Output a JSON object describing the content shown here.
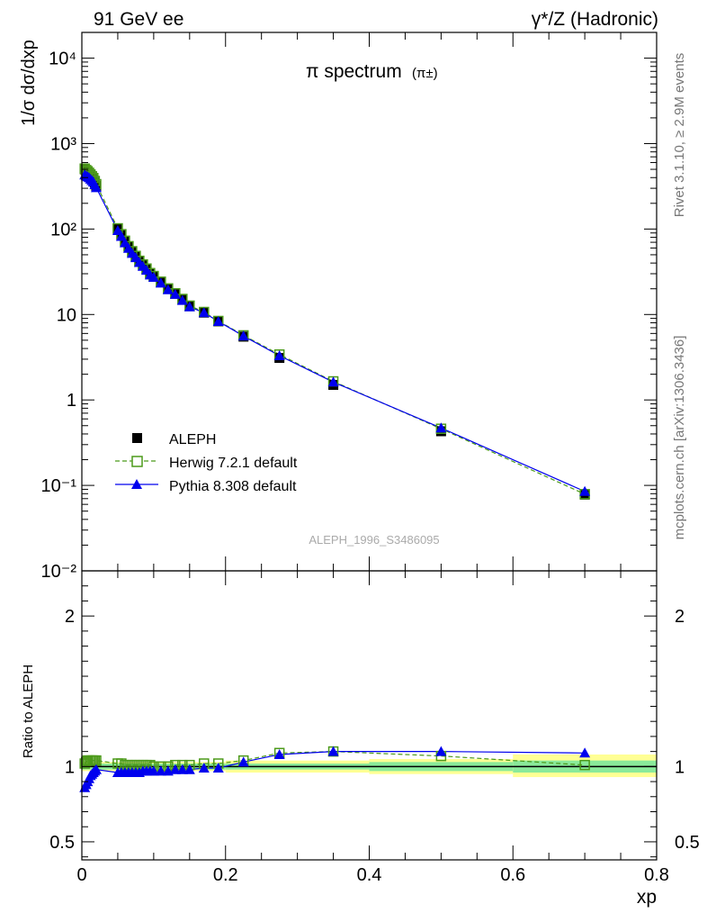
{
  "header": {
    "left": "91 GeV ee",
    "right": "γ*/Z (Hadronic)"
  },
  "title": {
    "main": "π spectrum",
    "sub": "(π±)"
  },
  "side_labels": {
    "top": "Rivet 3.1.10, ≥ 2.9M events",
    "bottom": "mcplots.cern.ch [arXiv:1306.3436]"
  },
  "reference": "ALEPH_1996_S3486095",
  "legend": {
    "items": [
      {
        "label": "ALEPH",
        "color": "#000000",
        "marker": "square-filled"
      },
      {
        "label": "Herwig 7.2.1 default",
        "color": "#4c9a1a",
        "marker": "square-open"
      },
      {
        "label": "Pythia 8.308 default",
        "color": "#0000ee",
        "marker": "triangle-filled"
      }
    ]
  },
  "chart_data": {
    "type": "line",
    "main": {
      "ylabel": "1/σ dσ/dxp",
      "yscale": "log",
      "ylim": [
        0.01,
        20000
      ],
      "ytick_labels": [
        "10⁻²",
        "10⁻¹",
        "1",
        "10",
        "10²",
        "10³",
        "10⁴"
      ],
      "x": [
        0.004,
        0.006,
        0.008,
        0.01,
        0.012,
        0.014,
        0.016,
        0.018,
        0.02,
        0.05,
        0.055,
        0.06,
        0.065,
        0.07,
        0.075,
        0.08,
        0.085,
        0.09,
        0.095,
        0.1,
        0.11,
        0.12,
        0.13,
        0.14,
        0.15,
        0.17,
        0.19,
        0.225,
        0.275,
        0.35,
        0.5,
        0.7
      ],
      "series": [
        {
          "name": "ALEPH",
          "values": [
            500,
            480,
            460,
            440,
            420,
            400,
            380,
            350,
            320,
            100,
            85,
            72,
            62,
            54,
            48,
            42,
            38,
            34,
            30,
            28,
            24,
            20,
            17.5,
            15,
            12.5,
            10.5,
            8.3,
            5.5,
            3.1,
            1.5,
            0.43,
            0.078
          ]
        },
        {
          "name": "Herwig 7.2.1 default",
          "values": [
            510,
            490,
            475,
            455,
            435,
            415,
            395,
            365,
            335,
            102,
            87,
            73,
            63,
            55,
            48.5,
            42.5,
            38.5,
            34.5,
            30.5,
            28.2,
            24.2,
            20.2,
            17.7,
            15.2,
            12.7,
            10.7,
            8.4,
            5.7,
            3.4,
            1.65,
            0.46,
            0.079
          ]
        },
        {
          "name": "Pythia 8.308 default",
          "values": [
            430,
            420,
            410,
            400,
            385,
            370,
            355,
            330,
            305,
            96,
            82,
            69,
            59.5,
            52,
            46.3,
            40.6,
            36.7,
            33,
            29,
            27.2,
            23.3,
            19.5,
            17.2,
            14.6,
            12.3,
            10.5,
            8.3,
            5.6,
            3.3,
            1.62,
            0.47,
            0.085
          ]
        }
      ]
    },
    "ratio": {
      "ylabel": "Ratio to ALEPH",
      "ylim": [
        0.38,
        2.3
      ],
      "ytick_labels": [
        "0.5",
        "1",
        "2"
      ],
      "xlabel": "xp",
      "xlim": [
        0,
        0.8
      ],
      "xtick_labels": [
        "0",
        "0.2",
        "0.4",
        "0.6",
        "0.8"
      ],
      "x": [
        0.004,
        0.006,
        0.008,
        0.01,
        0.012,
        0.014,
        0.016,
        0.018,
        0.02,
        0.05,
        0.055,
        0.06,
        0.065,
        0.07,
        0.075,
        0.08,
        0.085,
        0.09,
        0.095,
        0.1,
        0.11,
        0.12,
        0.13,
        0.14,
        0.15,
        0.17,
        0.19,
        0.225,
        0.275,
        0.35,
        0.5,
        0.7
      ],
      "series": [
        {
          "name": "Herwig 7.2.1 default",
          "values": [
            1.02,
            1.03,
            1.04,
            1.04,
            1.04,
            1.04,
            1.04,
            1.04,
            1.04,
            1.02,
            1.02,
            1.01,
            1.01,
            1.01,
            1.01,
            1.01,
            1.01,
            1.01,
            1.01,
            1.0,
            1.0,
            1.0,
            1.01,
            1.01,
            1.01,
            1.02,
            1.02,
            1.04,
            1.09,
            1.1,
            1.07,
            1.01
          ]
        },
        {
          "name": "Pythia 8.308 default",
          "values": [
            0.86,
            0.88,
            0.9,
            0.92,
            0.94,
            0.95,
            0.96,
            0.97,
            0.98,
            0.96,
            0.96,
            0.96,
            0.96,
            0.96,
            0.96,
            0.96,
            0.97,
            0.97,
            0.97,
            0.97,
            0.97,
            0.97,
            0.98,
            0.98,
            0.98,
            0.99,
            0.99,
            1.03,
            1.08,
            1.1,
            1.1,
            1.09
          ]
        }
      ],
      "bands": [
        {
          "x0": 0.0,
          "x1": 0.2,
          "inner": [
            0.98,
            1.02
          ],
          "outer": [
            0.97,
            1.03
          ]
        },
        {
          "x0": 0.2,
          "x1": 0.4,
          "inner": [
            0.98,
            1.02
          ],
          "outer": [
            0.96,
            1.04
          ]
        },
        {
          "x0": 0.4,
          "x1": 0.6,
          "inner": [
            0.97,
            1.03
          ],
          "outer": [
            0.95,
            1.05
          ]
        },
        {
          "x0": 0.6,
          "x1": 0.8,
          "inner": [
            0.96,
            1.04
          ],
          "outer": [
            0.93,
            1.08
          ]
        }
      ]
    }
  }
}
